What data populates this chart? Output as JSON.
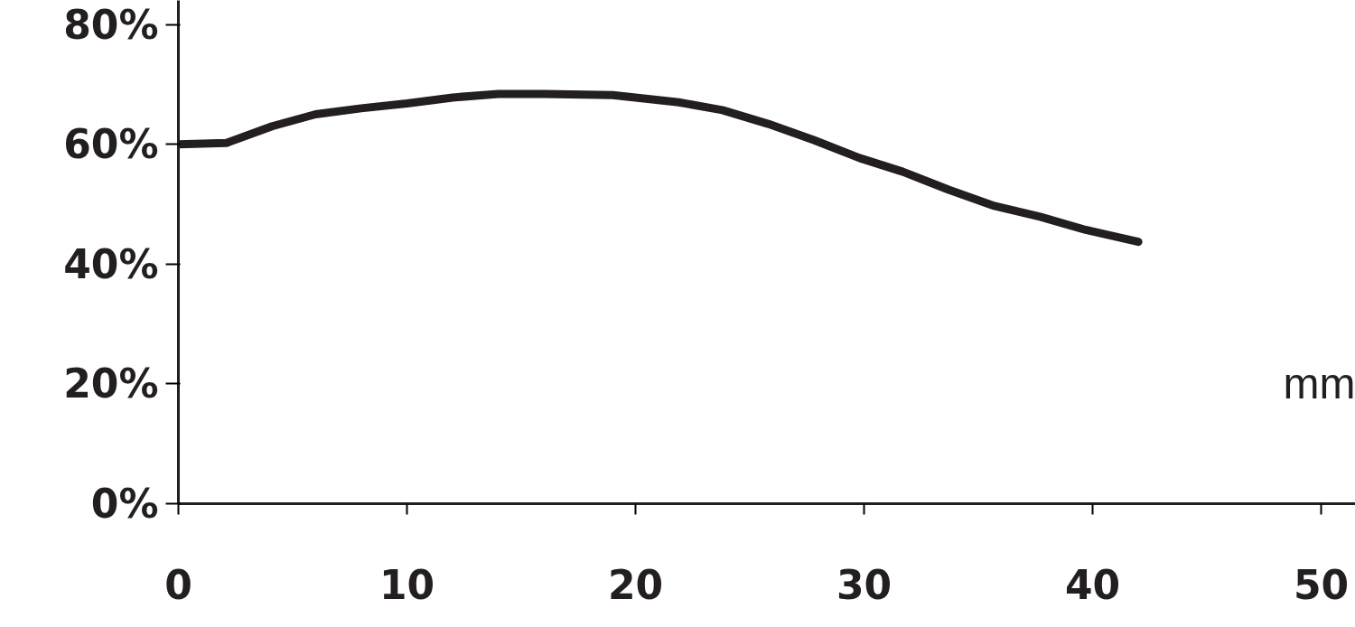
{
  "chart_data": {
    "type": "line",
    "xlabel": "mm",
    "x": [
      0,
      2.1,
      4.1,
      6,
      8,
      10,
      12,
      14,
      16,
      19,
      21.9,
      23.8,
      25.8,
      27.8,
      29.8,
      31.7,
      33.7,
      35.7,
      37.7,
      39.7,
      42
    ],
    "series": [
      {
        "color": "#231f20",
        "values": [
          60,
          60.2,
          63,
          65,
          66,
          66.8,
          67.8,
          68.4,
          68.4,
          68.2,
          67,
          65.7,
          63.4,
          60.7,
          57.7,
          55.4,
          52.4,
          49.7,
          47.9,
          45.7,
          43.7
        ]
      }
    ],
    "xlim": [
      0,
      51.5
    ],
    "xticks": [
      0,
      10,
      20,
      30,
      40,
      50
    ],
    "ylim": [
      0,
      84
    ],
    "yticks": [
      {
        "value": 0,
        "label": "0%"
      },
      {
        "value": 20,
        "label": "20%"
      },
      {
        "value": 40,
        "label": "40%"
      },
      {
        "value": 60,
        "label": "60%"
      },
      {
        "value": 80,
        "label": "80%"
      }
    ],
    "grid": false,
    "marker": "none",
    "line_style": "solid"
  }
}
